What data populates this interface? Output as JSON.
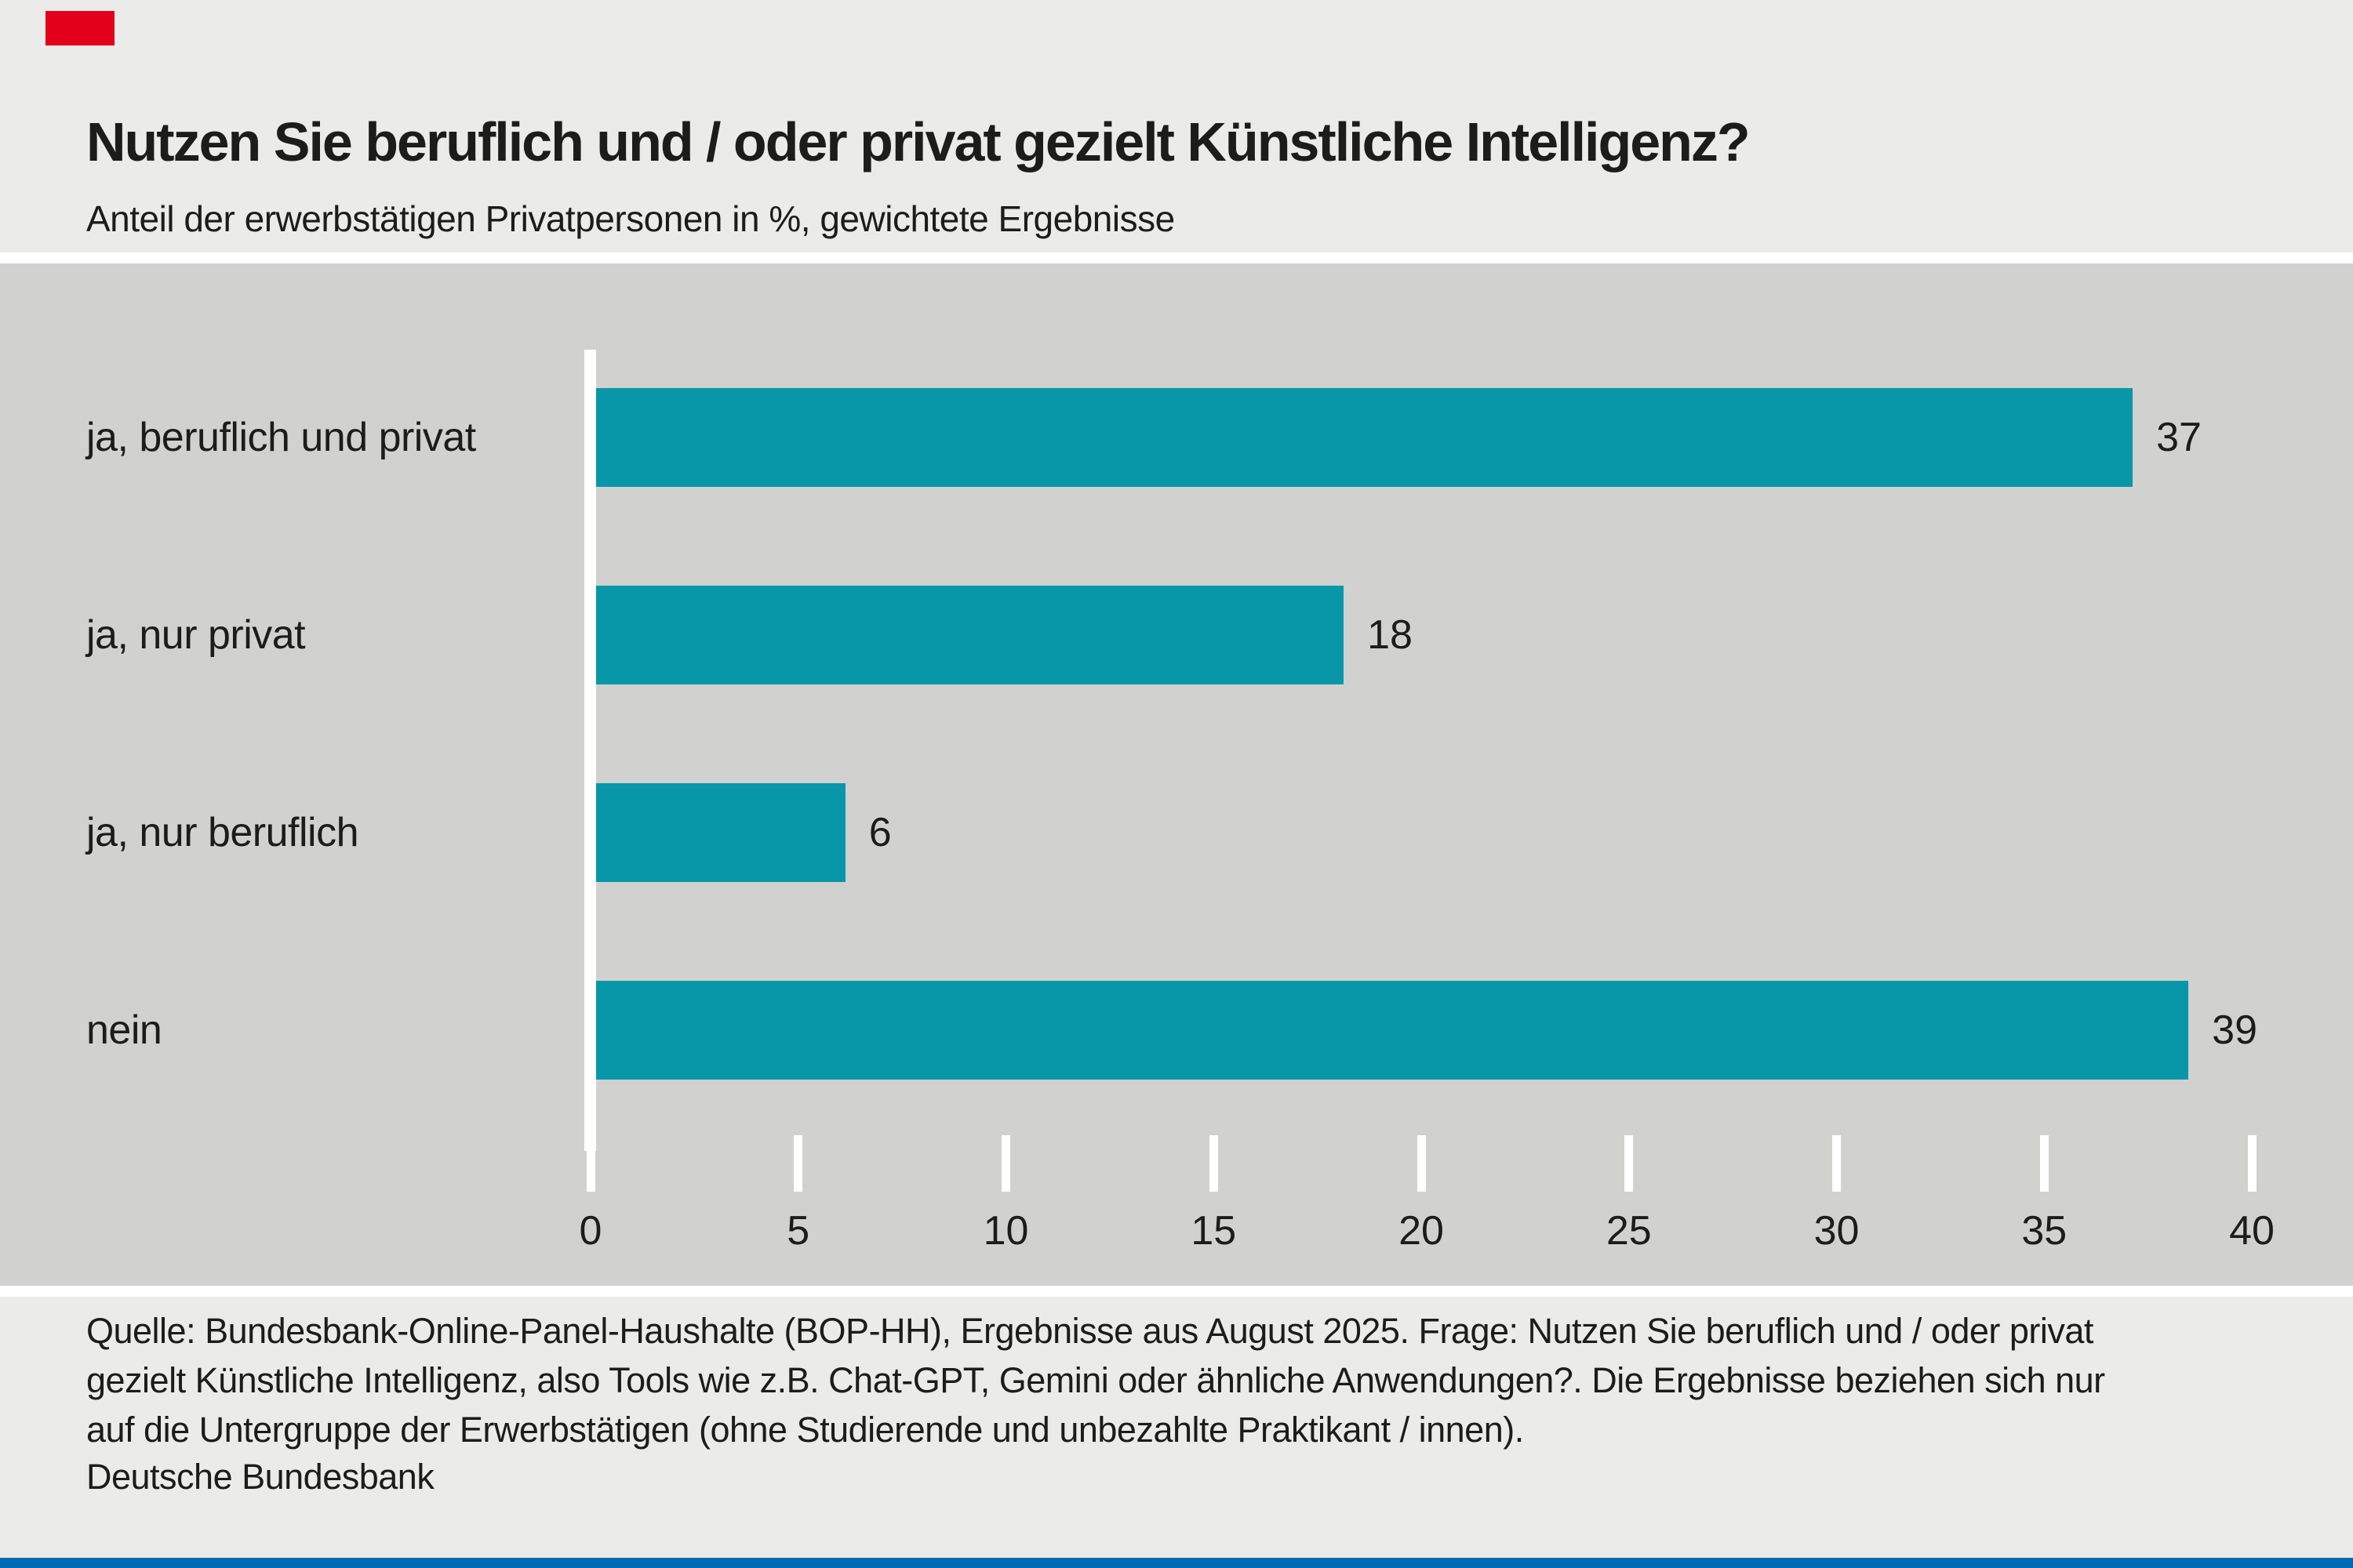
{
  "colors": {
    "page_bg": "#ebebe9",
    "plot_bg": "#d1d1cf",
    "bar": "#0897a8",
    "brand_red": "#e2001a",
    "bottom_blue": "#0069b4",
    "text": "#1c1c1a"
  },
  "header": {
    "title": "Nutzen Sie beruflich und / oder privat gezielt Künstliche Intelligenz?",
    "subtitle": "Anteil der erwerbstätigen Privatpersonen in %, gewichtete Ergebnisse"
  },
  "chart_data": {
    "type": "bar",
    "orientation": "horizontal",
    "title": "Nutzen Sie beruflich und / oder privat gezielt Künstliche Intelligenz?",
    "subtitle": "Anteil der erwerbstätigen Privatpersonen in %, gewichtete Ergebnisse",
    "categories": [
      "ja, beruflich und privat",
      "ja, nur privat",
      "ja, nur beruflich",
      "nein"
    ],
    "values": [
      37,
      18,
      6,
      39
    ],
    "unit": "%",
    "xlim": [
      0,
      40
    ],
    "xticks": [
      0,
      5,
      10,
      15,
      20,
      25,
      30,
      35,
      40
    ],
    "grid": false,
    "legend": false,
    "value_labels_shown": true,
    "bar_color": "#0897a8"
  },
  "footer": {
    "source_lines": [
      "Quelle: Bundesbank-Online-Panel-Haushalte (BOP-HH), Ergebnisse aus August 2025. Frage: Nutzen Sie beruflich und / oder privat",
      "gezielt Künstliche Intelligenz, also Tools wie z.B. Chat-GPT, Gemini oder ähnliche Anwendungen?. Die Ergebnisse beziehen sich nur",
      "auf die Untergruppe der Erwerbstätigen (ohne Studierende und unbezahlte Praktikant / innen)."
    ],
    "publisher": "Deutsche Bundesbank"
  }
}
